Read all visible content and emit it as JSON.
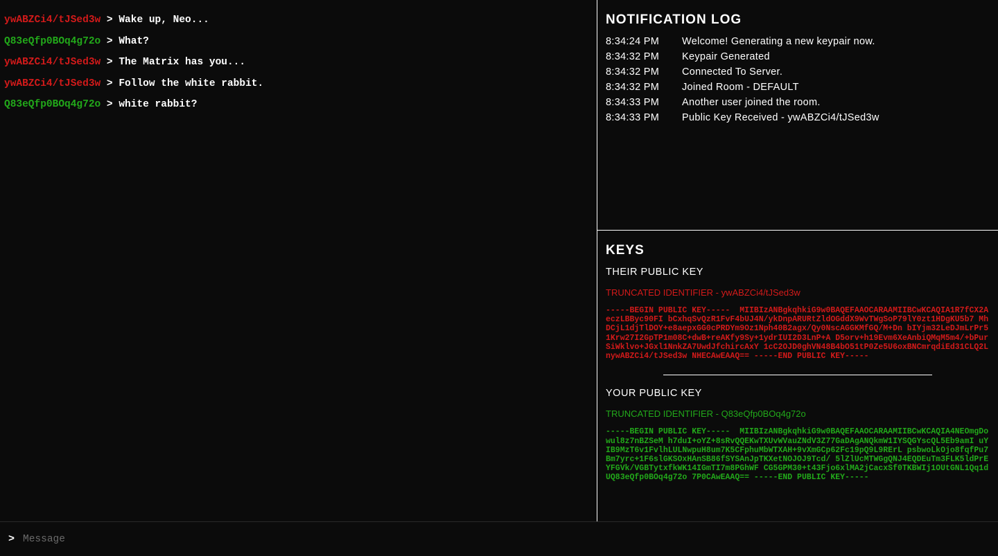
{
  "colors": {
    "background": "#0b0b0b",
    "user_red": "#d31a1a",
    "user_green": "#22a91a",
    "text_white": "#ffffff",
    "placeholder": "#6a6a6a",
    "divider": "#ffffff"
  },
  "chat": {
    "messages": [
      {
        "user": "ywABZCi4/tJSed3w",
        "color": "red",
        "text": "Wake up, Neo..."
      },
      {
        "user": "Q83eQfp0BOq4g72o",
        "color": "green",
        "text": "What?"
      },
      {
        "user": "ywABZCi4/tJSed3w",
        "color": "red",
        "text": "The Matrix has you..."
      },
      {
        "user": "ywABZCi4/tJSed3w",
        "color": "red",
        "text": "Follow the white rabbit."
      },
      {
        "user": "Q83eQfp0BOq4g72o",
        "color": "green",
        "text": "white rabbit?"
      }
    ],
    "arrow": ">"
  },
  "notifications": {
    "title": "NOTIFICATION LOG",
    "entries": [
      {
        "time": "8:34:24 PM",
        "text": "Welcome! Generating a new keypair now."
      },
      {
        "time": "8:34:32 PM",
        "text": "Keypair Generated"
      },
      {
        "time": "8:34:32 PM",
        "text": "Connected To Server."
      },
      {
        "time": "8:34:32 PM",
        "text": "Joined Room - DEFAULT"
      },
      {
        "time": "8:34:33 PM",
        "text": "Another user joined the room."
      },
      {
        "time": "8:34:33 PM",
        "text": "Public Key Received - ywABZCi4/tJSed3w"
      }
    ]
  },
  "keys": {
    "title": "KEYS",
    "their": {
      "label": "THEIR PUBLIC KEY",
      "trunc_label": "TRUNCATED IDENTIFIER - ",
      "trunc_id": "ywABZCi4/tJSed3w",
      "block": "-----BEGIN PUBLIC KEY-----  MIIBIzANBgkqhkiG9w0BAQEFAAOCARAAMIIBCwKCAQIA1R7fCX2AeczLBByc90FI bCxhqSvQzR1FvF4bUJ4N/ykDnpARURtZldOGddX9WvTWgSoP79lY0zt1HDgKU5b7 MhDCjL1djTlDOY+e8aepxGG0cPRDYm9Oz1Nph40B2agx/Qy0NscAGGKMfGQ/M+Dn bIYjm32LeDJmLrPr51Krw27I2GpTP1m08C+dwB+reAKfy9Sy+1ydrIUI2D3LnP+A D5orv+h19Evm6XeAnbiQMqM5m4/+bPurSiWklvo+JGxl1NnkZA7UwdJfchircAxY 1cC2OJD0ghVN48B4bO51tP0Ze5U6oxBNCmrqdiEd31CLQ2LnywABZCi4/tJSed3w NHECAwEAAQ== -----END PUBLIC KEY-----"
    },
    "your": {
      "label": "YOUR PUBLIC KEY",
      "trunc_label": "TRUNCATED IDENTIFIER - ",
      "trunc_id": "Q83eQfp0BOq4g72o",
      "block": "-----BEGIN PUBLIC KEY-----  MIIBIzANBgkqhkiG9w0BAQEFAAOCARAAMIIBCwKCAQIA4NEOmgDowul8z7nBZSeM h7duI+oYZ+8sRvQQEKwTXUvWVauZNdV3Z77GaDAgANQkmW1IYSQGYscQL5Eb9amI uYIB9MzT6v1FvlhLULNwpuH8um7K5CFphuMbWTXAH+9vXmGCp62Fc19pQ9L9RErL psbwoLkOjo8fqfPu7Bm7yrc+1F6slGKSOxHAnSB86fSYSAnJpTKXetNOJOJ9Tcd/ 5lZlUcMTWGgQNJ4EQDEuTm3FLK5ldPrEYFGVk/VGBTytxfkWK14IGmTI7m8PGhWF CG5GPM30+t43Fjo6xlMA2jCacxSf0TKBWIj1OUtGNL1Qq1dUQ83eQfp0BOq4g72o 7P0CAwEAAQ== -----END PUBLIC KEY-----"
    }
  },
  "input": {
    "prompt": ">",
    "placeholder": "Message"
  }
}
